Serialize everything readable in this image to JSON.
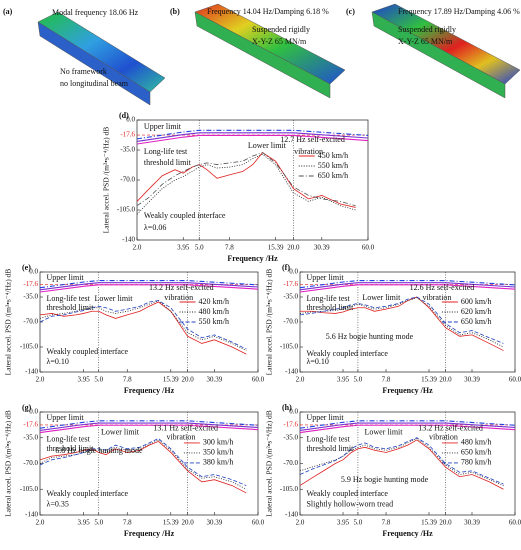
{
  "modal_panels": [
    {
      "label": "(a)",
      "texts": [
        "Modal frequency 18.06 Hz",
        "No framework",
        "no longitudinal beam"
      ]
    },
    {
      "label": "(b)",
      "texts": [
        "Frequency 14.04 Hz/Damping 6.18 %",
        "Suspended rigidly",
        "X-Y-Z 65 MN/m"
      ]
    },
    {
      "label": "(c)",
      "texts": [
        "Frequency 17.89 Hz/Damping 4.06 %",
        "Suspended rigidly",
        "X-Y-Z 65 MN/m"
      ]
    }
  ],
  "chart_data": [
    {
      "type": "line",
      "label": "(d)",
      "xlabel": "Frequency /Hz",
      "ylabel": "Lateral accel. PSD /(m²•s⁻⁴/Hz) dB",
      "xlog": true,
      "xlim": [
        2,
        60
      ],
      "xticks": [
        {
          "value": 2,
          "label": "2.0"
        },
        3.95,
        {
          "value": 5,
          "label": "5.0"
        },
        7.8,
        15.39,
        {
          "value": 20,
          "label": "20.0"
        },
        30.39,
        {
          "value": 60,
          "label": "60.0"
        }
      ],
      "ylim": [
        -140,
        0
      ],
      "yticks": [
        {
          "value": 0,
          "label": "0.0"
        },
        {
          "value": -35,
          "label": "-35.0"
        },
        {
          "value": -70,
          "label": "-70.0"
        },
        {
          "value": -105,
          "label": "-105.0"
        },
        -140
      ],
      "ref_line": -17.6,
      "ref_color": "#e02020",
      "vlines": [
        5,
        20
      ],
      "limit_x": [
        2,
        3.95,
        5,
        20,
        60
      ],
      "limit_lines": [
        {
          "color": "#e020c0",
          "style": "solid",
          "values": [
            -28,
            -20,
            -18,
            -18,
            -24
          ]
        },
        {
          "color": "#7a30d0",
          "style": "solid",
          "values": [
            -25,
            -17,
            -15,
            -15,
            -21
          ]
        },
        {
          "color": "#2040e0",
          "style": "dashdot",
          "values": [
            -22,
            -14,
            -12,
            -12,
            -18
          ]
        }
      ],
      "annotations": [
        "Upper limit",
        "Long-life test",
        "threshold limit",
        "Lower limit",
        "12.7 Hz self-excited",
        "vibration",
        "Weakly coupled interface",
        "λ=0.06"
      ],
      "x": [
        2,
        2.4,
        2.9,
        3.5,
        3.95,
        4.5,
        5,
        5.6,
        6.5,
        7.8,
        9.5,
        11,
        12.7,
        15.39,
        20,
        25,
        30.39,
        40,
        50
      ],
      "series": [
        {
          "name": "450 km/h",
          "color": "#e02020",
          "style": "solid",
          "values": [
            -95,
            -80,
            -65,
            -58,
            -62,
            -55,
            -52,
            -58,
            -68,
            -64,
            -60,
            -52,
            -38,
            -48,
            -80,
            -92,
            -88,
            -98,
            -102
          ]
        },
        {
          "name": "550 km/h",
          "color": "#202020",
          "style": "dotted",
          "values": [
            -110,
            -95,
            -80,
            -70,
            -66,
            -60,
            -55,
            -52,
            -56,
            -55,
            -52,
            -45,
            -40,
            -52,
            -85,
            -95,
            -90,
            -100,
            -105
          ]
        },
        {
          "name": "650 km/h",
          "color": "#505050",
          "style": "dashdot",
          "values": [
            -100,
            -90,
            -75,
            -65,
            -60,
            -55,
            -52,
            -50,
            -52,
            -50,
            -48,
            -42,
            -38,
            -50,
            -78,
            -88,
            -92,
            -95,
            -100
          ]
        }
      ]
    },
    {
      "type": "line",
      "label": "(e)",
      "xlabel": "Frequency /Hz",
      "ylabel": "Lateral accel. PSD /(m²•s⁻⁴/Hz) dB",
      "xlog": true,
      "xlim": [
        2,
        60
      ],
      "xticks": [
        {
          "value": 2,
          "label": "2.0"
        },
        3.95,
        {
          "value": 5,
          "label": "5.0"
        },
        7.8,
        15.39,
        {
          "value": 20,
          "label": "20.0"
        },
        30.39,
        {
          "value": 60,
          "label": "60.0"
        }
      ],
      "ylim": [
        -140,
        0
      ],
      "yticks": [
        {
          "value": 0,
          "label": "0.0"
        },
        {
          "value": -35,
          "label": "-35.0"
        },
        {
          "value": -70,
          "label": "-70.0"
        },
        {
          "value": -105,
          "label": "-105.0"
        },
        -140
      ],
      "ref_line": -17.6,
      "ref_color": "#e02020",
      "vlines": [
        5,
        20
      ],
      "limit_x": [
        2,
        3.95,
        5,
        20,
        60
      ],
      "limit_lines": [
        {
          "color": "#e020c0",
          "style": "solid",
          "values": [
            -28,
            -20,
            -18,
            -18,
            -24
          ]
        },
        {
          "color": "#7a30d0",
          "style": "solid",
          "values": [
            -25,
            -17,
            -15,
            -15,
            -21
          ]
        },
        {
          "color": "#2040e0",
          "style": "dashdot",
          "values": [
            -22,
            -14,
            -12,
            -12,
            -18
          ]
        }
      ],
      "annotations": [
        "Upper limit",
        "Long-life test",
        "threshold limit",
        "Lower limit",
        "13.2 Hz self-excited",
        "vibration",
        "Weakly coupled interface",
        "λ=0.10"
      ],
      "x": [
        2,
        2.4,
        2.9,
        3.5,
        3.95,
        4.5,
        5,
        5.6,
        6.5,
        7.8,
        9.5,
        11,
        12.7,
        15.39,
        20,
        25,
        30.39,
        40,
        50
      ],
      "series": [
        {
          "name": "420 km/h",
          "color": "#e02020",
          "style": "solid",
          "values": [
            -60,
            -58,
            -62,
            -60,
            -58,
            -55,
            -55,
            -60,
            -65,
            -60,
            -55,
            -48,
            -42,
            -55,
            -90,
            -100,
            -95,
            -105,
            -115
          ]
        },
        {
          "name": "480 km/h",
          "color": "#202020",
          "style": "dotted",
          "values": [
            -65,
            -60,
            -58,
            -55,
            -52,
            -50,
            -50,
            -55,
            -58,
            -55,
            -50,
            -45,
            -40,
            -55,
            -85,
            -95,
            -90,
            -100,
            -110
          ]
        },
        {
          "name": "550 km/h",
          "color": "#2040c0",
          "style": "dashed",
          "values": [
            -70,
            -62,
            -60,
            -56,
            -54,
            -50,
            -48,
            -50,
            -55,
            -52,
            -48,
            -42,
            -40,
            -50,
            -80,
            -92,
            -88,
            -98,
            -108
          ]
        }
      ]
    },
    {
      "type": "line",
      "label": "(f)",
      "xlabel": "Frequency /Hz",
      "ylabel": "Lateral accel. PSD /(m²•s⁻⁴/Hz) dB",
      "xlog": true,
      "xlim": [
        2,
        60
      ],
      "xticks": [
        {
          "value": 2,
          "label": "2.0"
        },
        3.95,
        {
          "value": 5,
          "label": "5.0"
        },
        7.8,
        15.39,
        {
          "value": 20,
          "label": "20.0"
        },
        30.39,
        {
          "value": 60,
          "label": "60.0"
        }
      ],
      "ylim": [
        -140,
        0
      ],
      "yticks": [
        {
          "value": 0,
          "label": "0.0"
        },
        {
          "value": -35,
          "label": "-35.0"
        },
        {
          "value": -70,
          "label": "-70.0"
        },
        {
          "value": -105,
          "label": "-105.0"
        },
        -140
      ],
      "ref_line": -17.6,
      "ref_color": "#e02020",
      "vlines": [
        5,
        20
      ],
      "limit_x": [
        2,
        3.95,
        5,
        20,
        60
      ],
      "limit_lines": [
        {
          "color": "#e020c0",
          "style": "solid",
          "values": [
            -28,
            -20,
            -18,
            -18,
            -24
          ]
        },
        {
          "color": "#7a30d0",
          "style": "solid",
          "values": [
            -25,
            -17,
            -15,
            -15,
            -21
          ]
        },
        {
          "color": "#2040e0",
          "style": "dashdot",
          "values": [
            -22,
            -14,
            -12,
            -12,
            -18
          ]
        }
      ],
      "annotations": [
        "Upper limit",
        "Long-life test",
        "threshold limit",
        "Lower limit",
        "12.6 Hz self-excited",
        "vibration",
        "5.6 Hz bogie hunting mode",
        "Weakly coupled interface",
        "λ=0.10"
      ],
      "x": [
        2,
        2.4,
        2.9,
        3.5,
        3.95,
        4.5,
        5,
        5.6,
        6.5,
        7.8,
        9.5,
        11,
        12.7,
        15.39,
        20,
        25,
        30.39,
        40,
        50
      ],
      "series": [
        {
          "name": "600 km/h",
          "color": "#e02020",
          "style": "solid",
          "values": [
            -55,
            -55,
            -57,
            -58,
            -56,
            -52,
            -50,
            -50,
            -55,
            -52,
            -48,
            -40,
            -35,
            -50,
            -78,
            -90,
            -88,
            -100,
            -110
          ]
        },
        {
          "name": "620 km/h",
          "color": "#202020",
          "style": "dotted",
          "values": [
            -58,
            -56,
            -55,
            -54,
            -52,
            -48,
            -45,
            -48,
            -52,
            -50,
            -45,
            -40,
            -36,
            -48,
            -75,
            -88,
            -85,
            -95,
            -105
          ]
        },
        {
          "name": "650 km/h",
          "color": "#2040c0",
          "style": "dashed",
          "values": [
            -60,
            -58,
            -55,
            -52,
            -50,
            -46,
            -44,
            -46,
            -50,
            -48,
            -44,
            -38,
            -35,
            -45,
            -72,
            -85,
            -82,
            -92,
            -100
          ]
        }
      ]
    },
    {
      "type": "line",
      "label": "(g)",
      "xlabel": "Frequency /Hz",
      "ylabel": "Lateral accel. PSD /(m²•s⁻⁴/Hz) dB",
      "xlog": true,
      "xlim": [
        2,
        60
      ],
      "xticks": [
        {
          "value": 2,
          "label": "2.0"
        },
        3.95,
        {
          "value": 5,
          "label": "5.0"
        },
        7.8,
        15.39,
        {
          "value": 20,
          "label": "20.0"
        },
        30.39,
        {
          "value": 60,
          "label": "60.0"
        }
      ],
      "ylim": [
        -140,
        0
      ],
      "yticks": [
        {
          "value": 0,
          "label": "0.0"
        },
        {
          "value": -35,
          "label": "-35.0"
        },
        {
          "value": -70,
          "label": "-70.0"
        },
        {
          "value": -105,
          "label": "-105.0"
        },
        -140
      ],
      "ref_line": -17.6,
      "ref_color": "#e02020",
      "vlines": [
        5,
        20
      ],
      "limit_x": [
        2,
        3.95,
        5,
        20,
        60
      ],
      "limit_lines": [
        {
          "color": "#e020c0",
          "style": "solid",
          "values": [
            -28,
            -20,
            -18,
            -18,
            -24
          ]
        },
        {
          "color": "#7a30d0",
          "style": "solid",
          "values": [
            -25,
            -17,
            -15,
            -15,
            -21
          ]
        },
        {
          "color": "#2040e0",
          "style": "dashdot",
          "values": [
            -22,
            -14,
            -12,
            -12,
            -18
          ]
        }
      ],
      "annotations": [
        "Upper limit",
        "Long-life test",
        "threshold limit",
        "Lower limit",
        "13.1 Hz self-excited",
        "vibration",
        "6.8 Hz bogie hunting mode",
        "Weakly coupled interface",
        "λ=0.35"
      ],
      "x": [
        2,
        2.4,
        2.9,
        3.5,
        3.95,
        4.5,
        5,
        5.6,
        6.5,
        7.8,
        9.5,
        11,
        12.7,
        15.39,
        20,
        25,
        30.39,
        40,
        50
      ],
      "series": [
        {
          "name": "300 km/h",
          "color": "#e02020",
          "style": "solid",
          "values": [
            -65,
            -60,
            -58,
            -55,
            -52,
            -50,
            -55,
            -58,
            -50,
            -55,
            -52,
            -45,
            -40,
            -55,
            -80,
            -95,
            -92,
            -100,
            -110
          ]
        },
        {
          "name": "350 km/h",
          "color": "#202020",
          "style": "dotted",
          "values": [
            -70,
            -62,
            -60,
            -58,
            -55,
            -52,
            -52,
            -55,
            -48,
            -52,
            -50,
            -44,
            -38,
            -52,
            -78,
            -90,
            -88,
            -95,
            -105
          ]
        },
        {
          "name": "380 km/h",
          "color": "#2040c0",
          "style": "dashed",
          "values": [
            -72,
            -65,
            -62,
            -58,
            -55,
            -50,
            -50,
            -52,
            -45,
            -50,
            -48,
            -42,
            -36,
            -50,
            -75,
            -88,
            -85,
            -92,
            -100
          ]
        }
      ]
    },
    {
      "type": "line",
      "label": "(h)",
      "xlabel": "Frequency /Hz",
      "ylabel": "Lateral accel. PSD /(m²•s⁻⁴/Hz) dB",
      "xlog": true,
      "xlim": [
        2,
        60
      ],
      "xticks": [
        {
          "value": 2,
          "label": "2.0"
        },
        3.95,
        {
          "value": 5,
          "label": "5.0"
        },
        7.8,
        15.39,
        {
          "value": 20,
          "label": "20.0"
        },
        30.39,
        {
          "value": 60,
          "label": "60.0"
        }
      ],
      "ylim": [
        -140,
        0
      ],
      "yticks": [
        {
          "value": 0,
          "label": "0.0"
        },
        {
          "value": -35,
          "label": "-35.0"
        },
        {
          "value": -70,
          "label": "-70.0"
        },
        {
          "value": -105,
          "label": "-105.0"
        },
        -140
      ],
      "ref_line": -17.6,
      "ref_color": "#e02020",
      "vlines": [
        5,
        20
      ],
      "limit_x": [
        2,
        3.95,
        5,
        20,
        60
      ],
      "limit_lines": [
        {
          "color": "#e020c0",
          "style": "solid",
          "values": [
            -28,
            -20,
            -18,
            -18,
            -24
          ]
        },
        {
          "color": "#7a30d0",
          "style": "solid",
          "values": [
            -25,
            -17,
            -15,
            -15,
            -21
          ]
        },
        {
          "color": "#2040e0",
          "style": "dashdot",
          "values": [
            -22,
            -14,
            -12,
            -12,
            -18
          ]
        }
      ],
      "annotations": [
        "Upper limit",
        "Long-life test",
        "threshold limit",
        "Lower limit",
        "13.2 Hz self-excited",
        "vibration",
        "5.9 Hz bogie hunting mode",
        "Weakly coupled interface",
        "Slightly hollow-worn tread"
      ],
      "x": [
        2,
        2.4,
        2.9,
        3.5,
        3.95,
        4.5,
        5,
        5.6,
        6.5,
        7.8,
        9.5,
        11,
        12.7,
        15.39,
        20,
        25,
        30.39,
        40,
        50
      ],
      "series": [
        {
          "name": "480 km/h",
          "color": "#e02020",
          "style": "solid",
          "values": [
            -100,
            -90,
            -80,
            -70,
            -65,
            -55,
            -50,
            -48,
            -52,
            -55,
            -50,
            -45,
            -38,
            -50,
            -75,
            -88,
            -85,
            -95,
            -105
          ]
        },
        {
          "name": "650 km/h",
          "color": "#202020",
          "style": "dotted",
          "values": [
            -80,
            -75,
            -70,
            -65,
            -60,
            -52,
            -48,
            -45,
            -50,
            -52,
            -48,
            -42,
            -36,
            -48,
            -72,
            -85,
            -82,
            -92,
            -100
          ]
        },
        {
          "name": "780 km/h",
          "color": "#2040c0",
          "style": "dashed",
          "values": [
            -85,
            -78,
            -72,
            -66,
            -60,
            -50,
            -45,
            -42,
            -48,
            -50,
            -46,
            -40,
            -35,
            -45,
            -70,
            -82,
            -80,
            -90,
            -98
          ]
        }
      ]
    }
  ]
}
